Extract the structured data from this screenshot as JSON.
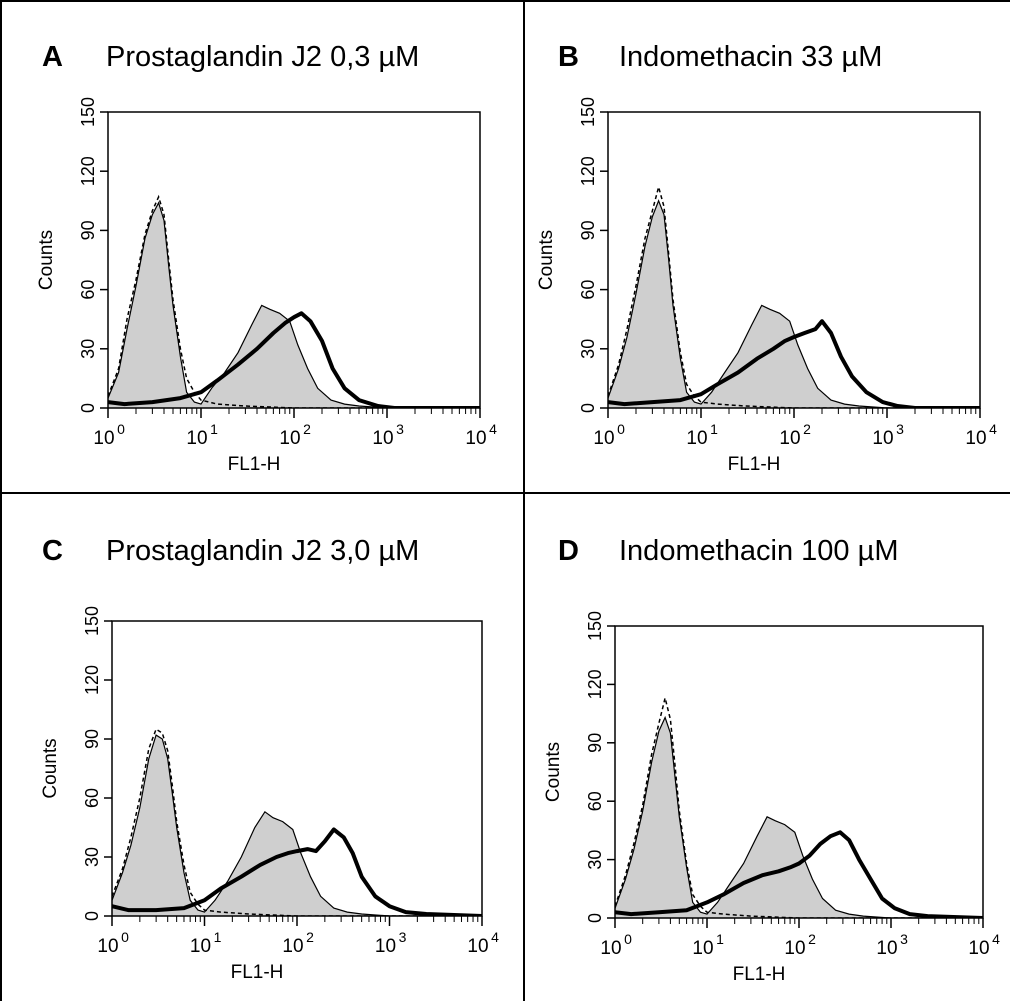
{
  "colors": {
    "fill": "#cfcfcf",
    "line": "#000000",
    "background": "#ffffff"
  },
  "chart_data": [
    {
      "type": "area",
      "panel_letter": "A",
      "title": "Prostaglandin J2 0,3 µM",
      "xlabel": "FL1-H",
      "ylabel": "Counts",
      "x_scale": "log",
      "xlim": [
        1,
        10000
      ],
      "ylim": [
        0,
        150
      ],
      "xticks": [
        1,
        10,
        100,
        1000,
        10000
      ],
      "xtick_labels": [
        {
          "base": "10",
          "exp": "0"
        },
        {
          "base": "10",
          "exp": "1"
        },
        {
          "base": "10",
          "exp": "2"
        },
        {
          "base": "10",
          "exp": "3"
        },
        {
          "base": "10",
          "exp": "4"
        }
      ],
      "yticks": [
        0,
        30,
        60,
        90,
        120,
        150
      ],
      "ytick_labels": [
        "0",
        "30",
        "60",
        "90",
        "120",
        "150"
      ],
      "series": [
        {
          "style": "gray-fill-thin",
          "x": [
            1,
            1.3,
            1.6,
            2.0,
            2.5,
            3.0,
            3.5,
            4.0,
            4.5,
            5.0,
            6.0,
            7.0,
            8.5,
            10,
            13,
            18,
            25,
            35,
            45,
            55,
            70,
            90,
            110,
            140,
            180,
            250,
            350,
            500,
            1000,
            10000
          ],
          "y": [
            5,
            18,
            40,
            62,
            86,
            98,
            104,
            95,
            72,
            52,
            26,
            8,
            3,
            2,
            10,
            18,
            28,
            42,
            52,
            50,
            48,
            44,
            32,
            20,
            10,
            4,
            2,
            1,
            0,
            0
          ]
        },
        {
          "style": "dashed",
          "x": [
            1,
            1.3,
            1.6,
            2.0,
            2.5,
            3.0,
            3.5,
            4.0,
            4.5,
            5.0,
            6.0,
            7.0,
            8.5,
            10,
            15,
            30,
            100,
            1000,
            10000
          ],
          "y": [
            6,
            20,
            45,
            65,
            88,
            100,
            107,
            98,
            75,
            55,
            30,
            15,
            8,
            4,
            2,
            1,
            0,
            0,
            0
          ]
        },
        {
          "style": "thick",
          "x": [
            1,
            1.5,
            3,
            6,
            10,
            15,
            25,
            40,
            60,
            80,
            100,
            120,
            150,
            200,
            260,
            350,
            500,
            800,
            1200,
            10000
          ],
          "y": [
            3,
            2,
            3,
            5,
            8,
            14,
            22,
            30,
            38,
            43,
            46,
            48,
            44,
            34,
            20,
            10,
            4,
            1,
            0,
            0
          ]
        }
      ]
    },
    {
      "type": "area",
      "panel_letter": "B",
      "title": "Indomethacin 33 µM",
      "xlabel": "FL1-H",
      "ylabel": "Counts",
      "x_scale": "log",
      "xlim": [
        1,
        10000
      ],
      "ylim": [
        0,
        150
      ],
      "xticks": [
        1,
        10,
        100,
        1000,
        10000
      ],
      "xtick_labels": [
        {
          "base": "10",
          "exp": "0"
        },
        {
          "base": "10",
          "exp": "1"
        },
        {
          "base": "10",
          "exp": "2"
        },
        {
          "base": "10",
          "exp": "3"
        },
        {
          "base": "10",
          "exp": "4"
        }
      ],
      "yticks": [
        0,
        30,
        60,
        90,
        120,
        150
      ],
      "ytick_labels": [
        "0",
        "30",
        "60",
        "90",
        "120",
        "150"
      ],
      "series": [
        {
          "style": "gray-fill-thin",
          "x": [
            1,
            1.3,
            1.6,
            2.0,
            2.5,
            3.0,
            3.5,
            4.0,
            4.5,
            5.0,
            6.0,
            7.0,
            8.5,
            10,
            13,
            18,
            25,
            35,
            45,
            55,
            70,
            90,
            110,
            140,
            180,
            250,
            350,
            500,
            1000,
            10000
          ],
          "y": [
            5,
            20,
            36,
            58,
            82,
            97,
            105,
            98,
            75,
            52,
            25,
            8,
            3,
            2,
            8,
            18,
            28,
            42,
            52,
            50,
            48,
            44,
            32,
            20,
            10,
            4,
            2,
            1,
            0,
            0
          ]
        },
        {
          "style": "dashed",
          "x": [
            1,
            1.3,
            1.6,
            2.0,
            2.5,
            3.0,
            3.5,
            4.0,
            4.5,
            5.0,
            6.0,
            7.0,
            8.5,
            10,
            15,
            30,
            100,
            1000,
            10000
          ],
          "y": [
            6,
            22,
            40,
            62,
            86,
            100,
            112,
            102,
            78,
            55,
            28,
            12,
            6,
            3,
            2,
            1,
            0,
            0,
            0
          ]
        },
        {
          "style": "thick",
          "x": [
            1,
            1.5,
            3,
            6,
            10,
            15,
            25,
            40,
            60,
            80,
            100,
            130,
            170,
            200,
            250,
            320,
            420,
            600,
            900,
            1300,
            2000,
            10000
          ],
          "y": [
            3,
            2,
            3,
            4,
            7,
            12,
            18,
            25,
            30,
            34,
            36,
            38,
            40,
            44,
            38,
            26,
            16,
            8,
            3,
            1,
            0,
            0
          ]
        }
      ]
    },
    {
      "type": "area",
      "panel_letter": "C",
      "title": "Prostaglandin J2 3,0 µM",
      "xlabel": "FL1-H",
      "ylabel": "Counts",
      "x_scale": "log",
      "xlim": [
        1,
        10000
      ],
      "ylim": [
        0,
        150
      ],
      "xticks": [
        1,
        10,
        100,
        1000,
        10000
      ],
      "xtick_labels": [
        {
          "base": "10",
          "exp": "0"
        },
        {
          "base": "10",
          "exp": "1"
        },
        {
          "base": "10",
          "exp": "2"
        },
        {
          "base": "10",
          "exp": "3"
        },
        {
          "base": "10",
          "exp": "4"
        }
      ],
      "yticks": [
        0,
        30,
        60,
        90,
        120,
        150
      ],
      "ytick_labels": [
        "0",
        "30",
        "60",
        "90",
        "120",
        "150"
      ],
      "series": [
        {
          "style": "gray-fill-thin",
          "x": [
            1,
            1.3,
            1.6,
            2.0,
            2.5,
            3.0,
            3.5,
            4.0,
            4.5,
            5.0,
            6.0,
            7.0,
            8.5,
            10,
            13,
            18,
            25,
            35,
            45,
            55,
            70,
            90,
            110,
            140,
            180,
            250,
            350,
            500,
            1000,
            10000
          ],
          "y": [
            8,
            22,
            36,
            55,
            80,
            92,
            90,
            80,
            62,
            45,
            22,
            8,
            3,
            2,
            8,
            18,
            30,
            45,
            53,
            50,
            48,
            44,
            32,
            20,
            10,
            4,
            2,
            1,
            0,
            0
          ]
        },
        {
          "style": "dashed",
          "x": [
            1,
            1.3,
            1.6,
            2.0,
            2.5,
            3.0,
            3.5,
            4.0,
            4.5,
            5.0,
            6.0,
            7.0,
            8.5,
            10,
            15,
            30,
            100,
            1000,
            10000
          ],
          "y": [
            10,
            24,
            40,
            60,
            85,
            95,
            93,
            84,
            66,
            48,
            26,
            12,
            6,
            3,
            2,
            1,
            0,
            0,
            0
          ]
        },
        {
          "style": "thick",
          "x": [
            1,
            1.5,
            3,
            6,
            10,
            15,
            25,
            40,
            60,
            80,
            100,
            130,
            160,
            200,
            250,
            320,
            400,
            500,
            700,
            1000,
            1500,
            2500,
            10000
          ],
          "y": [
            5,
            3,
            3,
            4,
            8,
            14,
            20,
            26,
            30,
            32,
            33,
            34,
            33,
            38,
            44,
            40,
            32,
            20,
            10,
            5,
            2,
            1,
            0
          ]
        }
      ]
    },
    {
      "type": "area",
      "panel_letter": "D",
      "title": "Indomethacin 100 µM",
      "xlabel": "FL1-H",
      "ylabel": "Counts",
      "x_scale": "log",
      "xlim": [
        1,
        10000
      ],
      "ylim": [
        0,
        150
      ],
      "xticks": [
        1,
        10,
        100,
        1000,
        10000
      ],
      "xtick_labels": [
        {
          "base": "10",
          "exp": "0"
        },
        {
          "base": "10",
          "exp": "1"
        },
        {
          "base": "10",
          "exp": "2"
        },
        {
          "base": "10",
          "exp": "3"
        },
        {
          "base": "10",
          "exp": "4"
        }
      ],
      "yticks": [
        0,
        30,
        60,
        90,
        120,
        150
      ],
      "ytick_labels": [
        "0",
        "30",
        "60",
        "90",
        "120",
        "150"
      ],
      "series": [
        {
          "style": "gray-fill-thin",
          "x": [
            1,
            1.3,
            1.6,
            2.0,
            2.5,
            3.0,
            3.5,
            4.0,
            4.5,
            5.0,
            6.0,
            7.0,
            8.5,
            10,
            13,
            18,
            25,
            35,
            45,
            55,
            70,
            90,
            110,
            140,
            180,
            250,
            350,
            500,
            1000,
            10000
          ],
          "y": [
            5,
            20,
            35,
            55,
            80,
            96,
            103,
            95,
            72,
            52,
            26,
            8,
            3,
            2,
            8,
            18,
            28,
            42,
            52,
            50,
            48,
            44,
            32,
            20,
            10,
            4,
            2,
            1,
            0,
            0
          ]
        },
        {
          "style": "dashed",
          "x": [
            1,
            1.3,
            1.6,
            2.0,
            2.5,
            3.0,
            3.5,
            4.0,
            4.5,
            5.0,
            6.0,
            7.0,
            8.5,
            10,
            15,
            30,
            100,
            1000,
            10000
          ],
          "y": [
            6,
            22,
            38,
            58,
            84,
            100,
            113,
            102,
            78,
            55,
            28,
            12,
            6,
            3,
            2,
            1,
            0,
            0,
            0
          ]
        },
        {
          "style": "thick",
          "x": [
            1,
            1.5,
            3,
            6,
            10,
            15,
            25,
            40,
            60,
            80,
            100,
            130,
            170,
            220,
            280,
            350,
            450,
            600,
            800,
            1100,
            1600,
            2500,
            10000
          ],
          "y": [
            3,
            2,
            3,
            4,
            8,
            12,
            18,
            22,
            24,
            26,
            28,
            32,
            38,
            42,
            44,
            40,
            30,
            20,
            10,
            5,
            2,
            1,
            0
          ]
        }
      ]
    }
  ]
}
